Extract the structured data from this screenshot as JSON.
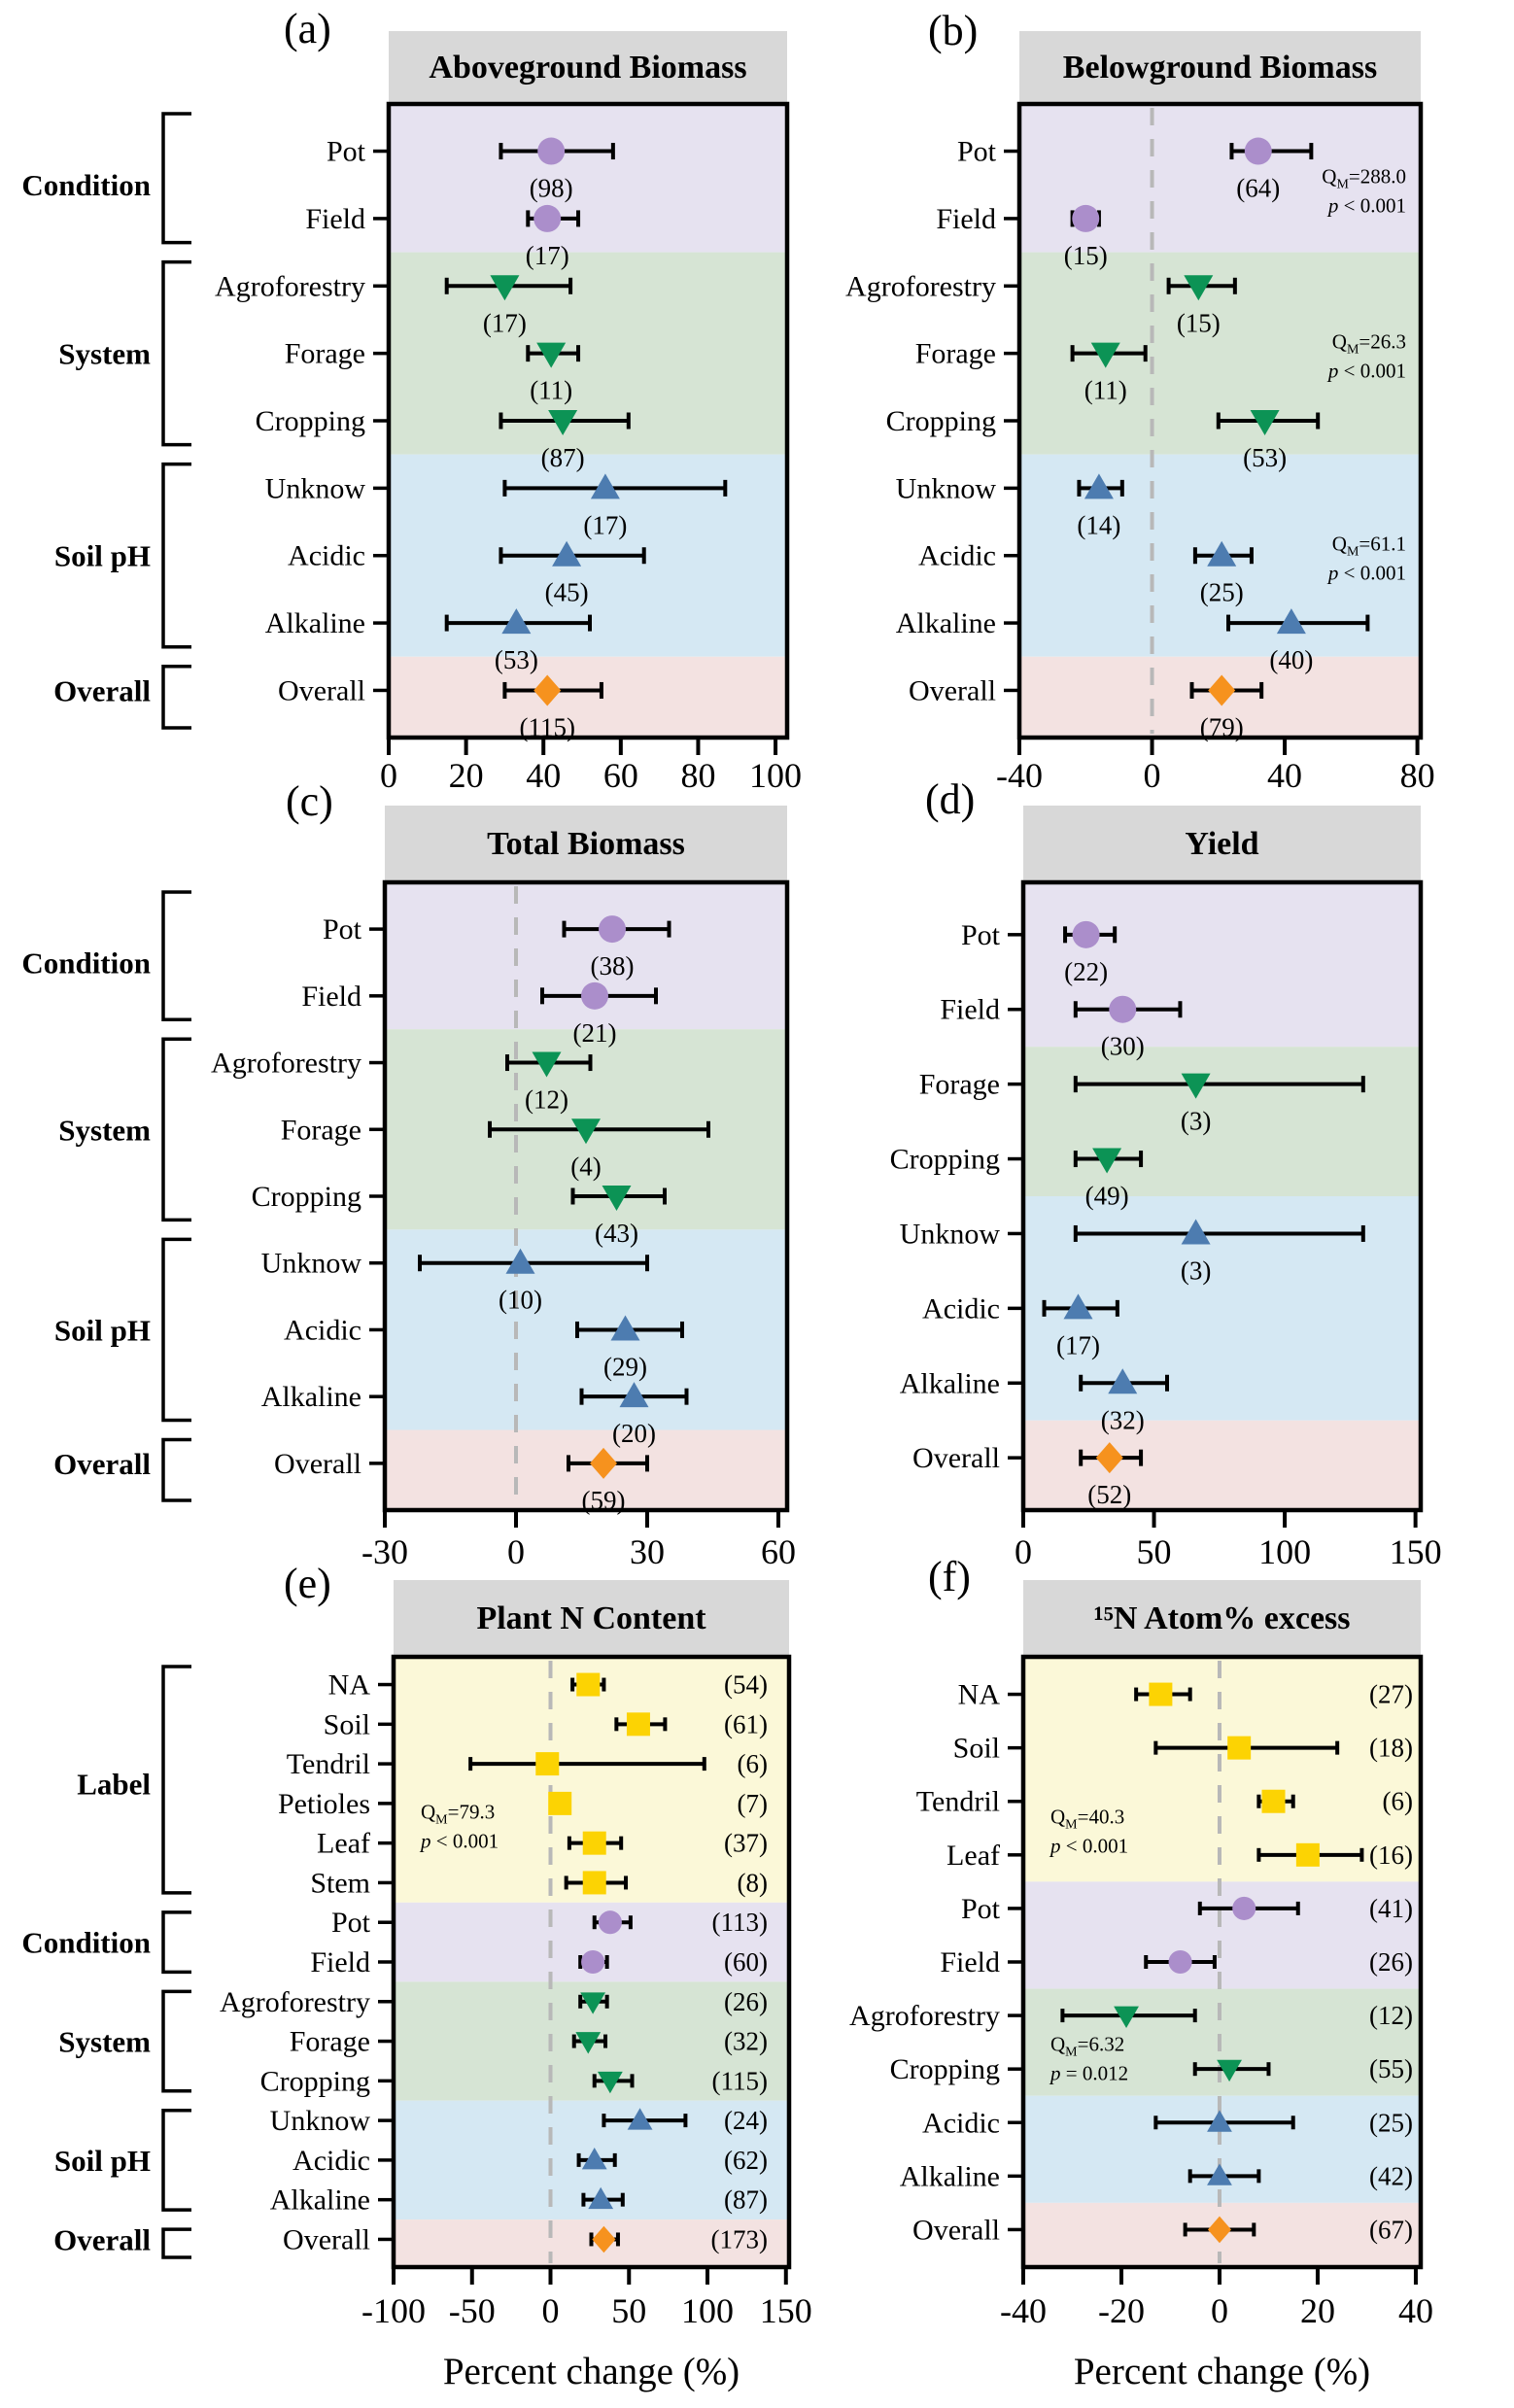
{
  "chart_data": {
    "type": "forest",
    "xlabel": "Percent change (%)",
    "colors": {
      "condition": "#ab8ecb",
      "system": "#0c9355",
      "soilph": "#4d7cb0",
      "overall": "#f6921e",
      "label": "#fcd303",
      "band_condition": "#e6e2f0",
      "band_system": "#d6e4d4",
      "band_soilph": "#d5e8f3",
      "band_overall": "#f3e2e1",
      "band_label": "#fbf8d8",
      "header": "#d8d8d8",
      "dash": "#b8b8b8",
      "axis": "#000000"
    },
    "panels": [
      {
        "id": "a",
        "letter": "(a)",
        "title": "Aboveground Biomass",
        "xlim": [
          0,
          103
        ],
        "xticks": [
          0,
          20,
          40,
          60,
          80,
          100
        ],
        "zero_line": false,
        "counts": "below",
        "xlabel": null,
        "groups": [
          {
            "name": "Condition",
            "key": "condition",
            "marker": "circle",
            "rows": [
              {
                "label": "Pot",
                "value": 42,
                "lo": 29,
                "hi": 58,
                "n": 98
              },
              {
                "label": "Field",
                "value": 41,
                "lo": 36,
                "hi": 49,
                "n": 17
              }
            ]
          },
          {
            "name": "System",
            "key": "system",
            "marker": "tri-down",
            "rows": [
              {
                "label": "Agroforestry",
                "value": 30,
                "lo": 15,
                "hi": 47,
                "n": 17
              },
              {
                "label": "Forage",
                "value": 42,
                "lo": 36,
                "hi": 49,
                "n": 11
              },
              {
                "label": "Cropping",
                "value": 45,
                "lo": 29,
                "hi": 62,
                "n": 87
              }
            ]
          },
          {
            "name": "Soil pH",
            "key": "soilph",
            "marker": "tri-up",
            "rows": [
              {
                "label": "Unknow",
                "value": 56,
                "lo": 30,
                "hi": 87,
                "n": 17
              },
              {
                "label": "Acidic",
                "value": 46,
                "lo": 29,
                "hi": 66,
                "n": 45
              },
              {
                "label": "Alkaline",
                "value": 33,
                "lo": 15,
                "hi": 52,
                "n": 53
              }
            ]
          },
          {
            "name": "Overall",
            "key": "overall",
            "marker": "diamond",
            "rows": [
              {
                "label": "Overall",
                "value": 41,
                "lo": 30,
                "hi": 55,
                "n": 115
              }
            ]
          }
        ],
        "annotations": []
      },
      {
        "id": "b",
        "letter": "(b)",
        "title": "Belowground Biomass",
        "xlim": [
          -40,
          81
        ],
        "xticks": [
          -40,
          0,
          40,
          80
        ],
        "zero_line": true,
        "counts": "below",
        "xlabel": null,
        "groups": [
          {
            "name": "Condition",
            "key": "condition",
            "marker": "circle",
            "rows": [
              {
                "label": "Pot",
                "value": 32,
                "lo": 24,
                "hi": 48,
                "n": 64
              },
              {
                "label": "Field",
                "value": -20,
                "lo": -24,
                "hi": -16,
                "n": 15
              }
            ]
          },
          {
            "name": "System",
            "key": "system",
            "marker": "tri-down",
            "rows": [
              {
                "label": "Agroforestry",
                "value": 14,
                "lo": 5,
                "hi": 25,
                "n": 15
              },
              {
                "label": "Forage",
                "value": -14,
                "lo": -24,
                "hi": -2,
                "n": 11
              },
              {
                "label": "Cropping",
                "value": 34,
                "lo": 20,
                "hi": 50,
                "n": 53
              }
            ]
          },
          {
            "name": "Soil pH",
            "key": "soilph",
            "marker": "tri-up",
            "rows": [
              {
                "label": "Unknow",
                "value": -16,
                "lo": -22,
                "hi": -9,
                "n": 14
              },
              {
                "label": "Acidic",
                "value": 21,
                "lo": 13,
                "hi": 30,
                "n": 25
              },
              {
                "label": "Alkaline",
                "value": 42,
                "lo": 23,
                "hi": 65,
                "n": 40
              }
            ]
          },
          {
            "name": "Overall",
            "key": "overall",
            "marker": "diamond",
            "rows": [
              {
                "label": "Overall",
                "value": 21,
                "lo": 12,
                "hi": 33,
                "n": 79
              }
            ]
          }
        ],
        "annotations": [
          {
            "qm": "288.0",
            "p": "< 0.001",
            "side": "right",
            "row": 0.55
          },
          {
            "qm": "26.3",
            "p": "< 0.001",
            "side": "right",
            "row": 3
          },
          {
            "qm": "61.1",
            "p": "< 0.001",
            "side": "right",
            "row": 6
          }
        ]
      },
      {
        "id": "c",
        "letter": "(c)",
        "title": "Total Biomass",
        "xlim": [
          -30,
          62
        ],
        "xticks": [
          -30,
          0,
          30,
          60
        ],
        "zero_line": true,
        "counts": "below",
        "xlabel": null,
        "groups": [
          {
            "name": "Condition",
            "key": "condition",
            "marker": "circle",
            "rows": [
              {
                "label": "Pot",
                "value": 22,
                "lo": 11,
                "hi": 35,
                "n": 38
              },
              {
                "label": "Field",
                "value": 18,
                "lo": 6,
                "hi": 32,
                "n": 21
              }
            ]
          },
          {
            "name": "System",
            "key": "system",
            "marker": "tri-down",
            "rows": [
              {
                "label": "Agroforestry",
                "value": 7,
                "lo": -2,
                "hi": 17,
                "n": 12
              },
              {
                "label": "Forage",
                "value": 16,
                "lo": -6,
                "hi": 44,
                "n": 4
              },
              {
                "label": "Cropping",
                "value": 23,
                "lo": 13,
                "hi": 34,
                "n": 43
              }
            ]
          },
          {
            "name": "Soil pH",
            "key": "soilph",
            "marker": "tri-up",
            "rows": [
              {
                "label": "Unknow",
                "value": 1,
                "lo": -22,
                "hi": 30,
                "n": 10
              },
              {
                "label": "Acidic",
                "value": 25,
                "lo": 14,
                "hi": 38,
                "n": 29
              },
              {
                "label": "Alkaline",
                "value": 27,
                "lo": 15,
                "hi": 39,
                "n": 20
              }
            ]
          },
          {
            "name": "Overall",
            "key": "overall",
            "marker": "diamond",
            "rows": [
              {
                "label": "Overall",
                "value": 20,
                "lo": 12,
                "hi": 30,
                "n": 59
              }
            ]
          }
        ],
        "annotations": []
      },
      {
        "id": "d",
        "letter": "(d)",
        "title": "Yield",
        "xlim": [
          0,
          152
        ],
        "xticks": [
          0,
          50,
          100,
          150
        ],
        "zero_line": false,
        "counts": "below",
        "xlabel": null,
        "groups": [
          {
            "name": "Condition",
            "key": "condition",
            "marker": "circle",
            "rows": [
              {
                "label": "Pot",
                "value": 24,
                "lo": 16,
                "hi": 35,
                "n": 22
              },
              {
                "label": "Field",
                "value": 38,
                "lo": 20,
                "hi": 60,
                "n": 30
              }
            ]
          },
          {
            "name": "System",
            "key": "system",
            "marker": "tri-down",
            "rows": [
              {
                "label": "Forage",
                "value": 66,
                "lo": 20,
                "hi": 130,
                "n": 3
              },
              {
                "label": "Cropping",
                "value": 32,
                "lo": 20,
                "hi": 45,
                "n": 49
              }
            ]
          },
          {
            "name": "Soil pH",
            "key": "soilph",
            "marker": "tri-up",
            "rows": [
              {
                "label": "Unknow",
                "value": 66,
                "lo": 20,
                "hi": 130,
                "n": 3
              },
              {
                "label": "Acidic",
                "value": 21,
                "lo": 8,
                "hi": 36,
                "n": 17
              },
              {
                "label": "Alkaline",
                "value": 38,
                "lo": 22,
                "hi": 55,
                "n": 32
              }
            ]
          },
          {
            "name": "Overall",
            "key": "overall",
            "marker": "diamond",
            "rows": [
              {
                "label": "Overall",
                "value": 33,
                "lo": 22,
                "hi": 45,
                "n": 52
              }
            ]
          }
        ],
        "annotations": []
      },
      {
        "id": "e",
        "letter": "(e)",
        "title": "Plant N Content",
        "xlim": [
          -100,
          152
        ],
        "xticks": [
          -100,
          -50,
          0,
          50,
          100,
          150
        ],
        "zero_line": true,
        "counts": "right",
        "xlabel": "Percent change (%)",
        "groups": [
          {
            "name": "Label",
            "key": "label",
            "marker": "square",
            "rows": [
              {
                "label": "NA",
                "value": 24,
                "lo": 14,
                "hi": 34,
                "n": 54
              },
              {
                "label": "Soil",
                "value": 56,
                "lo": 42,
                "hi": 73,
                "n": 61
              },
              {
                "label": "Tendril",
                "value": -2,
                "lo": -51,
                "hi": 98,
                "n": 6
              },
              {
                "label": "Petioles",
                "value": 6,
                "lo": 6,
                "hi": 6,
                "n": 7
              },
              {
                "label": "Leaf",
                "value": 28,
                "lo": 12,
                "hi": 45,
                "n": 37
              },
              {
                "label": "Stem",
                "value": 28,
                "lo": 10,
                "hi": 48,
                "n": 8
              }
            ]
          },
          {
            "name": "Condition",
            "key": "condition",
            "marker": "circle",
            "rows": [
              {
                "label": "Pot",
                "value": 38,
                "lo": 28,
                "hi": 51,
                "n": 113
              },
              {
                "label": "Field",
                "value": 27,
                "lo": 19,
                "hi": 36,
                "n": 60
              }
            ]
          },
          {
            "name": "System",
            "key": "system",
            "marker": "tri-down",
            "rows": [
              {
                "label": "Agroforestry",
                "value": 27,
                "lo": 19,
                "hi": 36,
                "n": 26
              },
              {
                "label": "Forage",
                "value": 24,
                "lo": 15,
                "hi": 35,
                "n": 32
              },
              {
                "label": "Cropping",
                "value": 38,
                "lo": 28,
                "hi": 52,
                "n": 115
              }
            ]
          },
          {
            "name": "Soil pH",
            "key": "soilph",
            "marker": "tri-up",
            "rows": [
              {
                "label": "Unknow",
                "value": 57,
                "lo": 34,
                "hi": 86,
                "n": 24
              },
              {
                "label": "Acidic",
                "value": 28,
                "lo": 18,
                "hi": 41,
                "n": 62
              },
              {
                "label": "Alkaline",
                "value": 32,
                "lo": 21,
                "hi": 46,
                "n": 87
              }
            ]
          },
          {
            "name": "Overall",
            "key": "overall",
            "marker": "diamond",
            "rows": [
              {
                "label": "Overall",
                "value": 34,
                "lo": 26,
                "hi": 43,
                "n": 173
              }
            ]
          }
        ],
        "annotations": [
          {
            "qm": "79.3",
            "p": "< 0.001",
            "side": "left",
            "row": 3.5
          }
        ]
      },
      {
        "id": "f",
        "letter": "(f)",
        "title": "¹⁵N Atom% excess",
        "xlim": [
          -40,
          41
        ],
        "xticks": [
          -40,
          -20,
          0,
          20,
          40
        ],
        "zero_line": true,
        "counts": "right",
        "xlabel": "Percent change (%)",
        "groups": [
          {
            "name": "Label",
            "key": "label",
            "marker": "square",
            "rows": [
              {
                "label": "NA",
                "value": -12,
                "lo": -17,
                "hi": -6,
                "n": 27
              },
              {
                "label": "Soil",
                "value": 4,
                "lo": -13,
                "hi": 24,
                "n": 18
              },
              {
                "label": "Tendril",
                "value": 11,
                "lo": 8,
                "hi": 15,
                "n": 6
              },
              {
                "label": "Leaf",
                "value": 18,
                "lo": 8,
                "hi": 29,
                "n": 16
              }
            ]
          },
          {
            "name": "Condition",
            "key": "condition",
            "marker": "circle",
            "rows": [
              {
                "label": "Pot",
                "value": 5,
                "lo": -4,
                "hi": 16,
                "n": 41
              },
              {
                "label": "Field",
                "value": -8,
                "lo": -15,
                "hi": -1,
                "n": 26
              }
            ]
          },
          {
            "name": "System",
            "key": "system",
            "marker": "tri-down",
            "rows": [
              {
                "label": "Agroforestry",
                "value": -19,
                "lo": -32,
                "hi": -5,
                "n": 12
              },
              {
                "label": "Cropping",
                "value": 2,
                "lo": -5,
                "hi": 10,
                "n": 55
              }
            ]
          },
          {
            "name": "Soil pH",
            "key": "soilph",
            "marker": "tri-up",
            "rows": [
              {
                "label": "Acidic",
                "value": 0,
                "lo": -13,
                "hi": 15,
                "n": 25
              },
              {
                "label": "Alkaline",
                "value": 0,
                "lo": -6,
                "hi": 8,
                "n": 42
              }
            ]
          },
          {
            "name": "Overall",
            "key": "overall",
            "marker": "diamond",
            "rows": [
              {
                "label": "Overall",
                "value": 0,
                "lo": -7,
                "hi": 7,
                "n": 67
              }
            ]
          }
        ],
        "annotations": [
          {
            "qm": "40.3",
            "p": "< 0.001",
            "side": "left",
            "row": 2.5
          },
          {
            "qm": "6.32",
            "p": "= 0.012",
            "side": "left",
            "row": 6.75
          }
        ]
      }
    ]
  }
}
